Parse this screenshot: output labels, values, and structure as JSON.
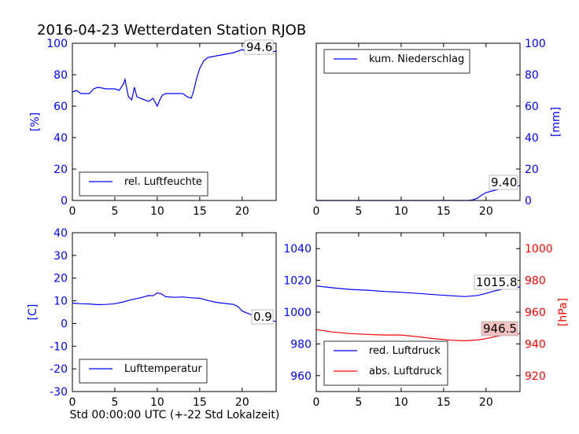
{
  "title": "2016-04-23 Wetterdaten Station RJOB",
  "xlabel": "Std 00:00:00 UTC (+-22 Std Lokalzeit)",
  "colors": {
    "blue": "#0000ff",
    "red": "#ff0000",
    "annot_red_bg": "#f4c2c2"
  },
  "chart_data": [
    {
      "type": "line",
      "panel": "top-left",
      "ylabel": "[%]",
      "xlim": [
        0,
        24
      ],
      "ylim": [
        0,
        100
      ],
      "xticks": [
        0,
        5,
        10,
        15,
        20
      ],
      "yticks": [
        0,
        20,
        40,
        60,
        80,
        100
      ],
      "legend_placement": "lower-left",
      "annotation": "94.6",
      "series": [
        {
          "name": "rel. Luftfeuchte",
          "color": "#0000ff",
          "x": [
            0,
            0.5,
            1,
            2,
            2.5,
            3,
            4,
            5,
            5.5,
            6,
            6.2,
            6.6,
            7,
            7.3,
            7.6,
            8,
            8.5,
            9,
            9.5,
            10,
            10.3,
            10.6,
            11,
            12,
            13,
            13.5,
            14,
            14.3,
            14.6,
            15,
            15.5,
            16,
            17,
            18,
            19,
            20,
            21,
            22,
            23,
            24
          ],
          "y": [
            69,
            70,
            68,
            68,
            71,
            72,
            71,
            71,
            70,
            74,
            77,
            66,
            64,
            72,
            66,
            65,
            64,
            63,
            65,
            60,
            64,
            67,
            68,
            68,
            68,
            66,
            65,
            70,
            77,
            84,
            89,
            91,
            92,
            93,
            94,
            96,
            94,
            93,
            94,
            95
          ]
        }
      ]
    },
    {
      "type": "line",
      "panel": "top-right",
      "ylabel": "[mm]",
      "xlim": [
        0,
        24
      ],
      "ylim": [
        0,
        100
      ],
      "xticks": [
        0,
        5,
        10,
        15,
        20
      ],
      "yticks": [
        0,
        20,
        40,
        60,
        80,
        100
      ],
      "legend_placement": "upper-left",
      "annotation": "9.40",
      "series": [
        {
          "name": "kum. Niederschlag",
          "color": "#0000ff",
          "x": [
            0,
            18,
            18.5,
            19,
            19.5,
            20,
            21,
            22,
            23,
            24
          ],
          "y": [
            0,
            0,
            0.5,
            1.5,
            3.5,
            5,
            6.5,
            7.8,
            8.8,
            9.4
          ]
        }
      ]
    },
    {
      "type": "line",
      "panel": "bottom-left",
      "ylabel": "[C]",
      "xlim": [
        0,
        24
      ],
      "ylim": [
        -30,
        40
      ],
      "xticks": [
        0,
        5,
        10,
        15,
        20
      ],
      "yticks": [
        -30,
        -20,
        -10,
        0,
        10,
        20,
        30,
        40
      ],
      "legend_placement": "lower-left",
      "annotation": "0.9",
      "series": [
        {
          "name": "Lufttemperatur",
          "color": "#0000ff",
          "x": [
            0,
            1,
            2,
            3,
            4,
            5,
            6,
            7,
            8,
            9,
            9.5,
            10,
            10.5,
            11,
            12,
            13,
            14,
            15,
            16,
            17,
            18,
            19,
            19.5,
            20,
            21,
            22,
            23,
            24
          ],
          "y": [
            9,
            8.7,
            8.6,
            8.3,
            8.4,
            8.7,
            9.5,
            10.5,
            11.3,
            12.3,
            12.2,
            13.5,
            13,
            11.8,
            11.5,
            11.7,
            11.3,
            11.1,
            10.1,
            9.3,
            8.8,
            8.4,
            7.5,
            5.5,
            4,
            2.5,
            1.5,
            0.9
          ]
        }
      ]
    },
    {
      "type": "line",
      "panel": "bottom-right",
      "ylabel": "[hPa]",
      "xlim": [
        0,
        24
      ],
      "ylim_left": [
        950,
        1050
      ],
      "ylim_right": [
        910,
        1010
      ],
      "xticks": [
        0,
        5,
        10,
        15,
        20
      ],
      "yticks_left": [
        960,
        980,
        1000,
        1020,
        1040
      ],
      "yticks_right": [
        920,
        940,
        960,
        980,
        1000
      ],
      "legend_placement": "lower-left",
      "annotations": [
        "1015.8",
        "946.5"
      ],
      "series": [
        {
          "name": "red. Luftdruck",
          "color": "#0000ff",
          "axis": "left",
          "x": [
            0,
            2,
            4,
            6,
            8,
            10,
            12,
            14,
            16,
            17.5,
            19,
            20,
            21,
            22,
            24
          ],
          "y": [
            1016.5,
            1015.3,
            1014.3,
            1013.8,
            1013,
            1012.5,
            1011.8,
            1011,
            1010.3,
            1009.8,
            1010.5,
            1011.8,
            1013.3,
            1014.5,
            1015.8
          ]
        },
        {
          "name": "abs. Luftdruck",
          "color": "#ff0000",
          "axis": "right",
          "x": [
            0,
            2,
            4,
            6,
            8,
            10,
            12,
            14,
            16,
            17.5,
            19,
            20,
            21,
            22,
            24
          ],
          "y": [
            949,
            947.5,
            946.5,
            946,
            945.6,
            945.6,
            944.5,
            943.2,
            942.3,
            942,
            942.5,
            943.3,
            944.5,
            945.5,
            946.5
          ]
        }
      ]
    }
  ]
}
